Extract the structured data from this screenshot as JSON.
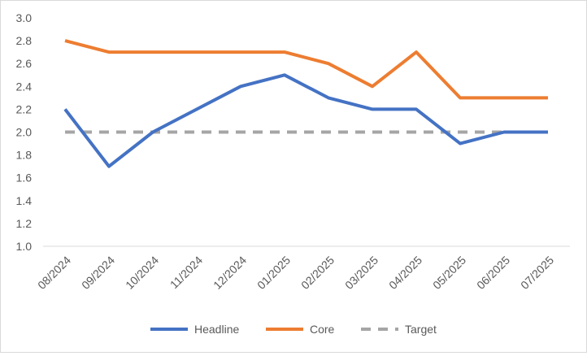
{
  "chart_data": {
    "type": "line",
    "title": "",
    "xlabel": "",
    "ylabel": "",
    "ylim": [
      1.0,
      3.0
    ],
    "y_ticks": [
      "1.0",
      "1.2",
      "1.4",
      "1.6",
      "1.8",
      "2.0",
      "2.2",
      "2.4",
      "2.6",
      "2.8",
      "3.0"
    ],
    "grid": false,
    "legend": "bottom",
    "categories": [
      "08/2024",
      "09/2024",
      "10/2024",
      "11/2024",
      "12/2024",
      "01/2025",
      "02/2025",
      "03/2025",
      "04/2025",
      "05/2025",
      "06/2025",
      "07/2025"
    ],
    "series": [
      {
        "name": "Headline",
        "color": "#4472c4",
        "dash": "solid",
        "values": [
          2.2,
          1.7,
          2.0,
          2.2,
          2.4,
          2.5,
          2.3,
          2.2,
          2.2,
          1.9,
          2.0,
          2.0
        ]
      },
      {
        "name": "Core",
        "color": "#ed7d31",
        "dash": "solid",
        "values": [
          2.8,
          2.7,
          2.7,
          2.7,
          2.7,
          2.7,
          2.6,
          2.4,
          2.7,
          2.3,
          2.3,
          2.3
        ]
      },
      {
        "name": "Target",
        "color": "#a5a5a5",
        "dash": "dashed",
        "values": [
          2.0,
          2.0,
          2.0,
          2.0,
          2.0,
          2.0,
          2.0,
          2.0,
          2.0,
          2.0,
          2.0,
          2.0
        ]
      }
    ]
  }
}
